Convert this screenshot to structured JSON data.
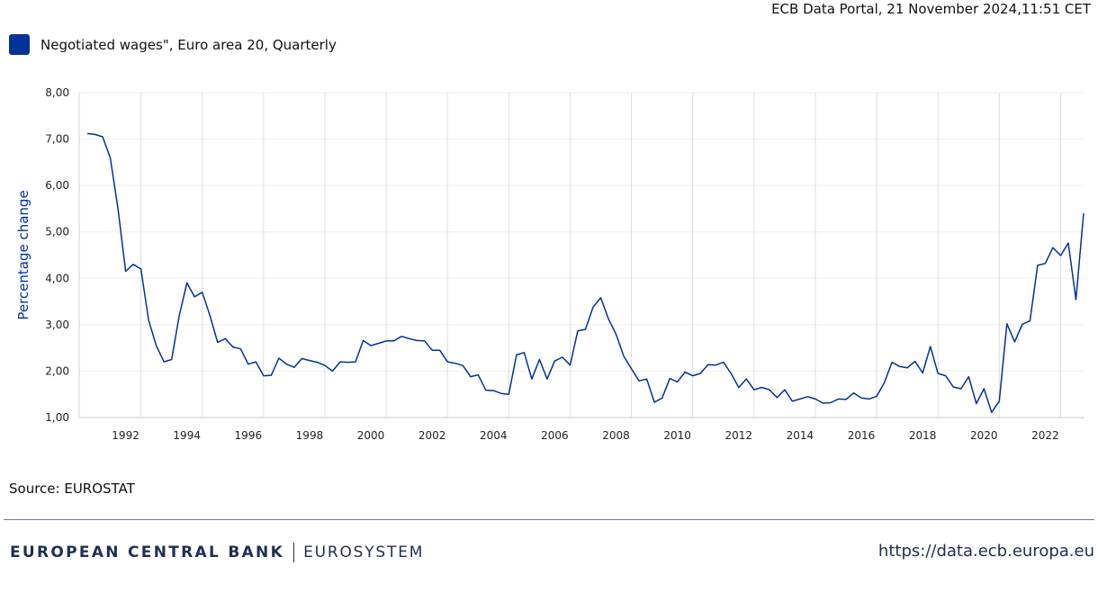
{
  "header": {
    "timestamp": "ECB Data Portal, 21 November 2024,11:51 CET"
  },
  "legend": {
    "label": "Negotiated wages\", Euro area 20, Quarterly",
    "color": "#003299"
  },
  "footer": {
    "source": "Source: EUROSTAT",
    "bank_name": "EUROPEAN CENTRAL BANK",
    "bank_sub": "EUROSYSTEM",
    "url": "https://data.ecb.europa.eu"
  },
  "chart_data": {
    "type": "line",
    "ylabel": "Percentage change",
    "ylim": [
      1,
      8
    ],
    "yticks": [
      "1,00",
      "2,00",
      "3,00",
      "4,00",
      "5,00",
      "6,00",
      "7,00",
      "8,00"
    ],
    "xticks": [
      "1992",
      "1994",
      "1996",
      "1998",
      "2000",
      "2002",
      "2004",
      "2006",
      "2008",
      "2010",
      "2012",
      "2014",
      "2016",
      "2018",
      "2020",
      "2022"
    ],
    "x_start": "1991-Q2",
    "grid": true,
    "legend_position": "top-left",
    "series": [
      {
        "name": "Negotiated wages\", Euro area 20, Quarterly",
        "color": "#003299",
        "values": [
          7.12,
          7.1,
          7.05,
          6.6,
          5.5,
          4.15,
          4.3,
          4.2,
          3.1,
          2.55,
          2.2,
          2.25,
          3.2,
          3.9,
          3.6,
          3.7,
          3.2,
          2.62,
          2.7,
          2.52,
          2.48,
          2.15,
          2.2,
          1.9,
          1.91,
          2.28,
          2.15,
          2.08,
          2.27,
          2.23,
          2.19,
          2.12,
          2.0,
          2.2,
          2.19,
          2.2,
          2.66,
          2.55,
          2.6,
          2.65,
          2.65,
          2.75,
          2.7,
          2.66,
          2.65,
          2.45,
          2.45,
          2.2,
          2.17,
          2.12,
          1.88,
          1.92,
          1.59,
          1.58,
          1.52,
          1.5,
          2.35,
          2.4,
          1.83,
          2.25,
          1.83,
          2.22,
          2.3,
          2.13,
          2.87,
          2.9,
          3.38,
          3.58,
          3.13,
          2.79,
          2.32,
          2.05,
          1.79,
          1.83,
          1.33,
          1.42,
          1.84,
          1.77,
          1.98,
          1.9,
          1.95,
          2.14,
          2.13,
          2.19,
          1.95,
          1.65,
          1.83,
          1.6,
          1.65,
          1.6,
          1.43,
          1.6,
          1.35,
          1.4,
          1.45,
          1.4,
          1.31,
          1.32,
          1.4,
          1.39,
          1.53,
          1.42,
          1.4,
          1.46,
          1.75,
          2.19,
          2.1,
          2.07,
          2.21,
          1.96,
          2.53,
          1.95,
          1.9,
          1.66,
          1.62,
          1.88,
          1.3,
          1.62,
          1.11,
          1.35,
          3.02,
          2.63,
          3.01,
          3.08,
          4.28,
          4.32,
          4.66,
          4.49,
          4.76,
          3.54,
          5.4
        ]
      }
    ]
  }
}
